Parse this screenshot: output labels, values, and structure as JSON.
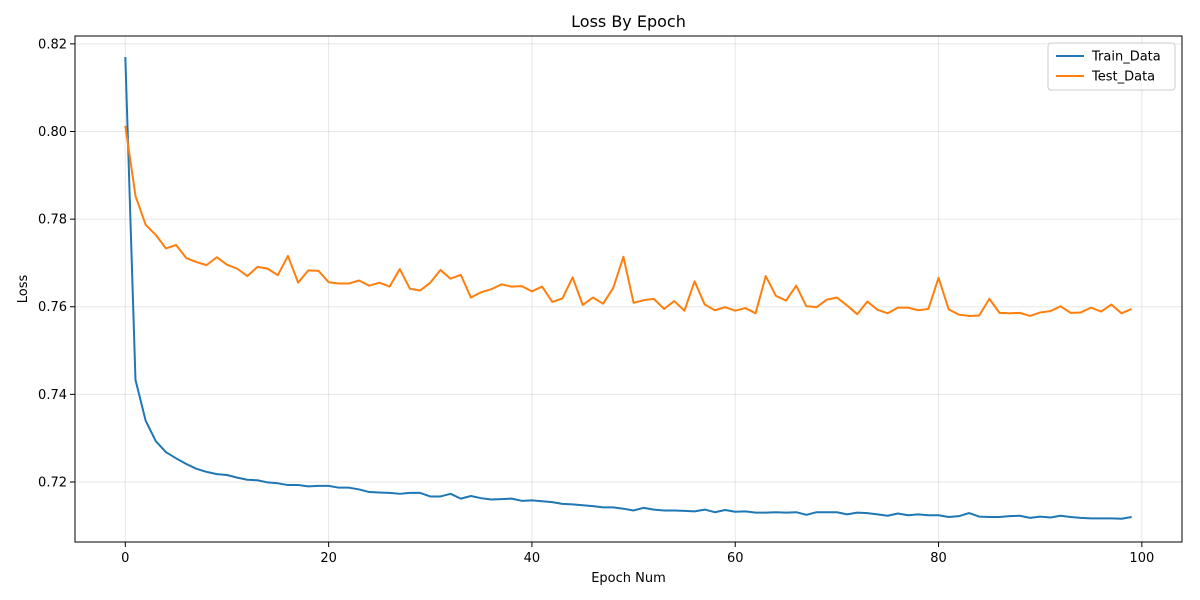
{
  "chart_data": {
    "type": "line",
    "title": "Loss By Epoch",
    "xlabel": "Epoch Num",
    "ylabel": "Loss",
    "xlim": [
      -4.95,
      103.95
    ],
    "ylim": [
      0.7063,
      0.8218
    ],
    "xticks": [
      0,
      20,
      40,
      60,
      80,
      100
    ],
    "xtick_labels": [
      "0",
      "20",
      "40",
      "60",
      "80",
      "100"
    ],
    "yticks": [
      0.72,
      0.74,
      0.76,
      0.78,
      0.8,
      0.82
    ],
    "ytick_labels": [
      "0.72",
      "0.74",
      "0.76",
      "0.78",
      "0.80",
      "0.82"
    ],
    "grid": true,
    "legend_position": "top-right",
    "series": [
      {
        "name": "Train_Data",
        "color": "#1f77b4",
        "x_start": 0,
        "values": [
          0.817,
          0.7433,
          0.734,
          0.7293,
          0.7268,
          0.7254,
          0.7241,
          0.723,
          0.7223,
          0.7218,
          0.7216,
          0.721,
          0.7205,
          0.7204,
          0.7199,
          0.7197,
          0.7193,
          0.7193,
          0.719,
          0.7191,
          0.7191,
          0.7187,
          0.7187,
          0.7183,
          0.7177,
          0.7176,
          0.7175,
          0.7173,
          0.7175,
          0.7175,
          0.7167,
          0.7167,
          0.7173,
          0.7162,
          0.7168,
          0.7163,
          0.716,
          0.7161,
          0.7162,
          0.7157,
          0.7158,
          0.7156,
          0.7154,
          0.715,
          0.7149,
          0.7147,
          0.7145,
          0.7142,
          0.7142,
          0.7139,
          0.7135,
          0.7141,
          0.7137,
          0.7135,
          0.7135,
          0.7134,
          0.7133,
          0.7137,
          0.7131,
          0.7136,
          0.7132,
          0.7133,
          0.713,
          0.713,
          0.7131,
          0.713,
          0.7131,
          0.7125,
          0.7131,
          0.7131,
          0.7131,
          0.7126,
          0.713,
          0.7129,
          0.7126,
          0.7123,
          0.7128,
          0.7124,
          0.7126,
          0.7124,
          0.7124,
          0.712,
          0.7122,
          0.7129,
          0.7121,
          0.712,
          0.712,
          0.7122,
          0.7123,
          0.7118,
          0.7121,
          0.7119,
          0.7123,
          0.712,
          0.7118,
          0.7117,
          0.7117,
          0.7117,
          0.7116,
          0.712
        ]
      },
      {
        "name": "Test_Data",
        "color": "#ff7f0e",
        "x_start": 0,
        "values": [
          0.8013,
          0.7853,
          0.7787,
          0.7764,
          0.7733,
          0.7741,
          0.7711,
          0.7702,
          0.7695,
          0.7713,
          0.7696,
          0.7687,
          0.767,
          0.7691,
          0.7687,
          0.7672,
          0.7716,
          0.7655,
          0.7683,
          0.7682,
          0.7656,
          0.7653,
          0.7653,
          0.766,
          0.7648,
          0.7655,
          0.7646,
          0.7686,
          0.7641,
          0.7637,
          0.7655,
          0.7684,
          0.7664,
          0.7673,
          0.7621,
          0.7633,
          0.764,
          0.7651,
          0.7646,
          0.7647,
          0.7635,
          0.7646,
          0.7611,
          0.7619,
          0.7667,
          0.7604,
          0.7621,
          0.7607,
          0.7643,
          0.7714,
          0.7609,
          0.7615,
          0.7618,
          0.7595,
          0.7613,
          0.7591,
          0.7658,
          0.7605,
          0.7592,
          0.7599,
          0.7591,
          0.7597,
          0.7585,
          0.767,
          0.7625,
          0.7614,
          0.7648,
          0.7601,
          0.7599,
          0.7616,
          0.7621,
          0.7603,
          0.7583,
          0.7612,
          0.7593,
          0.7585,
          0.7598,
          0.7598,
          0.7592,
          0.7595,
          0.7666,
          0.7594,
          0.7582,
          0.7579,
          0.758,
          0.7618,
          0.7586,
          0.7585,
          0.7586,
          0.7579,
          0.7587,
          0.759,
          0.7601,
          0.7586,
          0.7587,
          0.7598,
          0.7589,
          0.7605,
          0.7585,
          0.7595
        ]
      }
    ]
  }
}
